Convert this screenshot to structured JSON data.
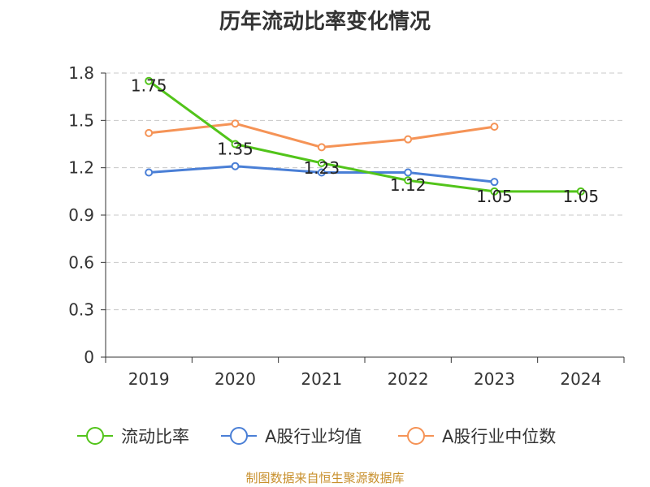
{
  "chart_data": {
    "type": "line",
    "title": "历年流动比率变化情况",
    "categories": [
      "2019",
      "2020",
      "2021",
      "2022",
      "2023",
      "2024"
    ],
    "ylim": [
      0,
      1.8
    ],
    "yticks": [
      "0",
      "0.3",
      "0.6",
      "0.9",
      "1.2",
      "1.5",
      "1.8"
    ],
    "grid": true,
    "legend_position": "bottom",
    "series": [
      {
        "name": "流动比率",
        "color": "#52c41a",
        "values": [
          1.75,
          1.35,
          1.23,
          1.12,
          1.05,
          1.05
        ],
        "labels": [
          "1.75",
          "1.35",
          "1.23",
          "1.12",
          "1.05",
          "1.05"
        ]
      },
      {
        "name": "A股行业均值",
        "color": "#4a7fd6",
        "values": [
          1.17,
          1.21,
          1.17,
          1.17,
          1.11,
          null
        ]
      },
      {
        "name": "A股行业中位数",
        "color": "#f59356",
        "values": [
          1.42,
          1.48,
          1.33,
          1.38,
          1.46,
          null
        ]
      }
    ]
  },
  "source": "制图数据来自恒生聚源数据库"
}
